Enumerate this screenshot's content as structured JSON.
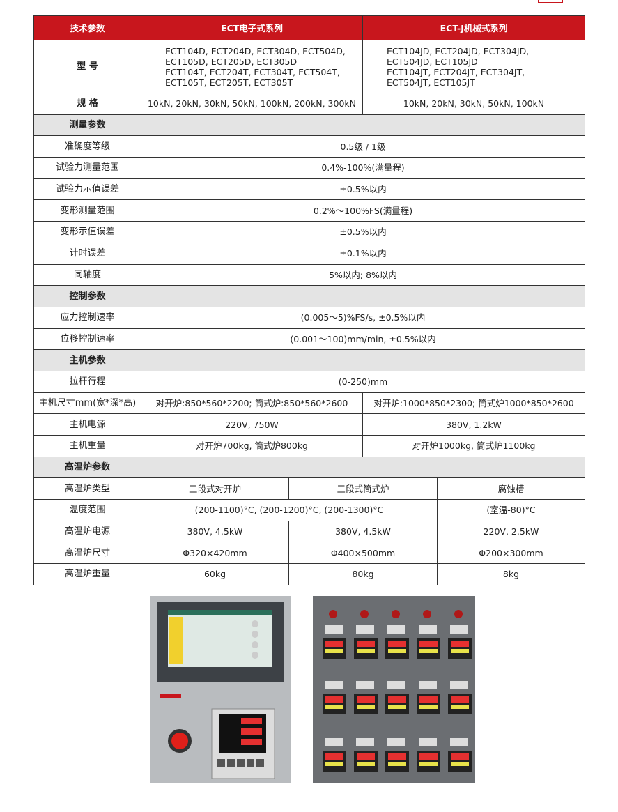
{
  "table": {
    "header": [
      "技术参数",
      "ECT电子式系列",
      "ECT-J机械式系列"
    ],
    "rows": [
      [
        "型 号",
        "ECT104D, ECT204D, ECT304D, ECT504D,\nECT105D, ECT205D, ECT305D\nECT104T, ECT204T, ECT304T, ECT504T,\nECT105T, ECT205T, ECT305T",
        "ECT104JD, ECT204JD, ECT304JD,\nECT504JD, ECT105JD\nECT104JT, ECT204JT, ECT304JT,\nECT504JT, ECT105JT"
      ],
      [
        "规 格",
        "10kN, 20kN, 30kN, 50kN, 100kN, 200kN, 300kN",
        "10kN, 20kN, 30kN, 50kN, 100kN"
      ],
      [
        "测量参数"
      ],
      [
        "准确度等级",
        "0.5级 / 1级"
      ],
      [
        "试验力测量范围",
        "0.4%-100%(满量程)"
      ],
      [
        "试验力示值误差",
        "±0.5%以内"
      ],
      [
        "变形测量范围",
        "0.2%～100%FS(满量程)"
      ],
      [
        "变形示值误差",
        "±0.5%以内"
      ],
      [
        "计时误差",
        "±0.1%以内"
      ],
      [
        "同轴度",
        "5%以内; 8%以内"
      ],
      [
        "控制参数"
      ],
      [
        "应力控制速率",
        "(0.005～5)%FS/s, ±0.5%以内"
      ],
      [
        "位移控制速率",
        "(0.001～100)mm/min, ±0.5%以内"
      ],
      [
        "主机参数"
      ],
      [
        "拉杆行程",
        "(0-250)mm"
      ],
      [
        "主机尺寸mm(宽*深*高)",
        "对开炉:850*560*2200; 筒式炉:850*560*2600",
        "对开炉:1000*850*2300; 筒式炉1000*850*2600"
      ],
      [
        "主机电源",
        "220V, 750W",
        "380V, 1.2kW"
      ],
      [
        "主机重量",
        "对开炉700kg, 筒式炉800kg",
        "对开炉1000kg, 筒式炉1100kg"
      ],
      [
        "高温炉参数"
      ],
      [
        "高温炉类型",
        "三段式对开炉",
        "三段式筒式炉",
        "腐蚀槽"
      ],
      [
        "温度范围",
        "(200-1100)°C, (200-1200)°C, (200-1300)°C",
        "(室温-80)°C"
      ],
      [
        "高温炉电源",
        "380V, 4.5kW",
        "380V, 4.5kW",
        "220V, 2.5kW"
      ],
      [
        "高温炉尺寸",
        "Φ320×420mm",
        "Φ400×500mm",
        "Φ200×300mm"
      ],
      [
        "高温炉重量",
        "60kg",
        "80kg",
        "8kg"
      ]
    ]
  }
}
